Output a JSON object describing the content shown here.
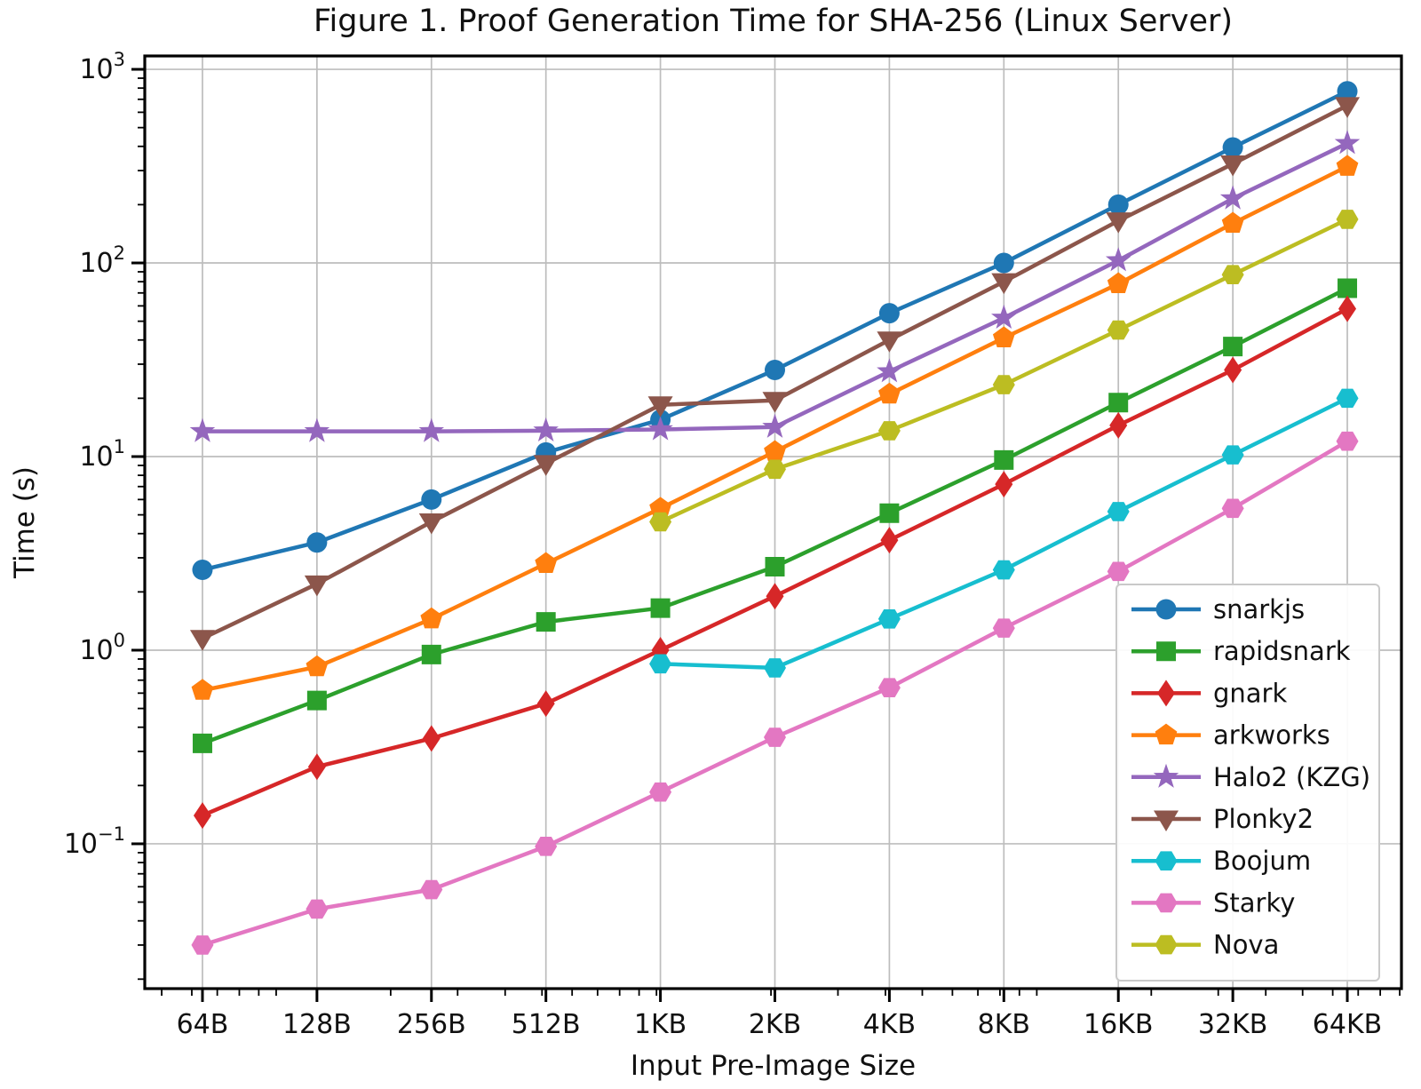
{
  "chart_data": {
    "type": "line",
    "title": "Figure 1. Proof Generation Time for SHA-256 (Linux Server)",
    "xlabel": "Input Pre-Image Size",
    "ylabel": "Time (s)",
    "x_scale": "log2",
    "y_scale": "log10",
    "grid": true,
    "legend_position": "lower right",
    "categories": [
      "64B",
      "128B",
      "256B",
      "512B",
      "1KB",
      "2KB",
      "4KB",
      "8KB",
      "16KB",
      "32KB",
      "64KB"
    ],
    "bytes": [
      64,
      128,
      256,
      512,
      1024,
      2048,
      4096,
      8192,
      16384,
      32768,
      65536
    ],
    "y_tick_exponents": [
      "−1",
      "0",
      "1",
      "2",
      "3"
    ],
    "ylim": [
      0.018,
      1170
    ],
    "series": [
      {
        "name": "snarkjs",
        "color": "#1f77b4",
        "marker": "circle",
        "values": [
          2.6,
          3.6,
          6.0,
          10.5,
          15.5,
          28,
          55,
          100,
          200,
          395,
          770
        ]
      },
      {
        "name": "rapidsnark",
        "color": "#2ca02c",
        "marker": "square",
        "values": [
          0.33,
          0.55,
          0.95,
          1.4,
          1.65,
          2.7,
          5.1,
          9.6,
          19,
          37,
          74
        ]
      },
      {
        "name": "gnark",
        "color": "#d62728",
        "marker": "diamond",
        "values": [
          0.14,
          0.25,
          0.35,
          0.53,
          1.0,
          1.9,
          3.7,
          7.2,
          14.5,
          28,
          58
        ]
      },
      {
        "name": "arkworks",
        "color": "#ff7f0e",
        "marker": "pentagon",
        "values": [
          0.62,
          0.82,
          1.45,
          2.8,
          5.4,
          10.6,
          21,
          41,
          78,
          160,
          315
        ]
      },
      {
        "name": "Halo2 (KZG)",
        "color": "#9467bd",
        "marker": "star",
        "values": [
          13.5,
          13.5,
          13.5,
          13.6,
          13.8,
          14.2,
          27.5,
          52,
          103,
          215,
          415
        ]
      },
      {
        "name": "Plonky2",
        "color": "#8c564b",
        "marker": "triangle-down",
        "values": [
          1.15,
          2.2,
          4.6,
          9.2,
          18.5,
          19.5,
          40,
          80,
          165,
          325,
          650
        ]
      },
      {
        "name": "Boojum",
        "color": "#17becf",
        "marker": "hexagon",
        "values": [
          null,
          null,
          null,
          null,
          0.85,
          0.81,
          1.45,
          2.6,
          5.2,
          10.2,
          20
        ]
      },
      {
        "name": "Starky",
        "color": "#e377c2",
        "marker": "hexagon",
        "values": [
          0.03,
          0.046,
          0.058,
          0.097,
          0.185,
          0.355,
          0.64,
          1.3,
          2.55,
          5.4,
          12
        ]
      },
      {
        "name": "Nova",
        "color": "#bcbd22",
        "marker": "hexagon",
        "values": [
          null,
          null,
          null,
          null,
          4.6,
          8.6,
          13.6,
          23.5,
          45,
          87,
          168
        ]
      }
    ]
  }
}
